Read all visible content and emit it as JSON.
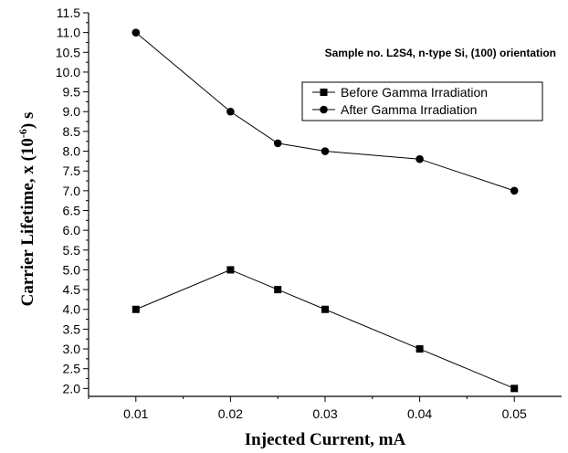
{
  "chart_data": {
    "type": "line",
    "title": "",
    "xlabel": "Injected Current, mA",
    "ylabel_main": "Carrier Lifetime, x (10",
    "ylabel_exp": "-6",
    "ylabel_tail": ") s",
    "annotation": "Sample no. L2S4, n-type Si, (100) orientation",
    "xlim": [
      0.005,
      0.055
    ],
    "ylim": [
      1.8,
      11.5
    ],
    "x_ticks": [
      "0.01",
      "0.02",
      "0.03",
      "0.04",
      "0.05"
    ],
    "y_ticks": [
      "2.0",
      "2.5",
      "3.0",
      "3.5",
      "4.0",
      "4.5",
      "5.0",
      "5.5",
      "6.0",
      "6.5",
      "7.0",
      "7.5",
      "8.0",
      "8.5",
      "9.0",
      "9.5",
      "10.0",
      "10.5",
      "11.0",
      "11.5"
    ],
    "legend_position": "upper-right",
    "grid": false,
    "series": [
      {
        "name": "Before Gamma Irradiation",
        "marker": "square",
        "color": "#000000",
        "x": [
          0.01,
          0.02,
          0.025,
          0.03,
          0.04,
          0.05
        ],
        "y": [
          4.0,
          5.0,
          4.5,
          4.0,
          3.0,
          2.0
        ]
      },
      {
        "name": "After Gamma Irradiation",
        "marker": "circle",
        "color": "#000000",
        "x": [
          0.01,
          0.02,
          0.025,
          0.03,
          0.04,
          0.05
        ],
        "y": [
          11.0,
          9.0,
          8.2,
          8.0,
          7.8,
          7.0
        ]
      }
    ]
  }
}
